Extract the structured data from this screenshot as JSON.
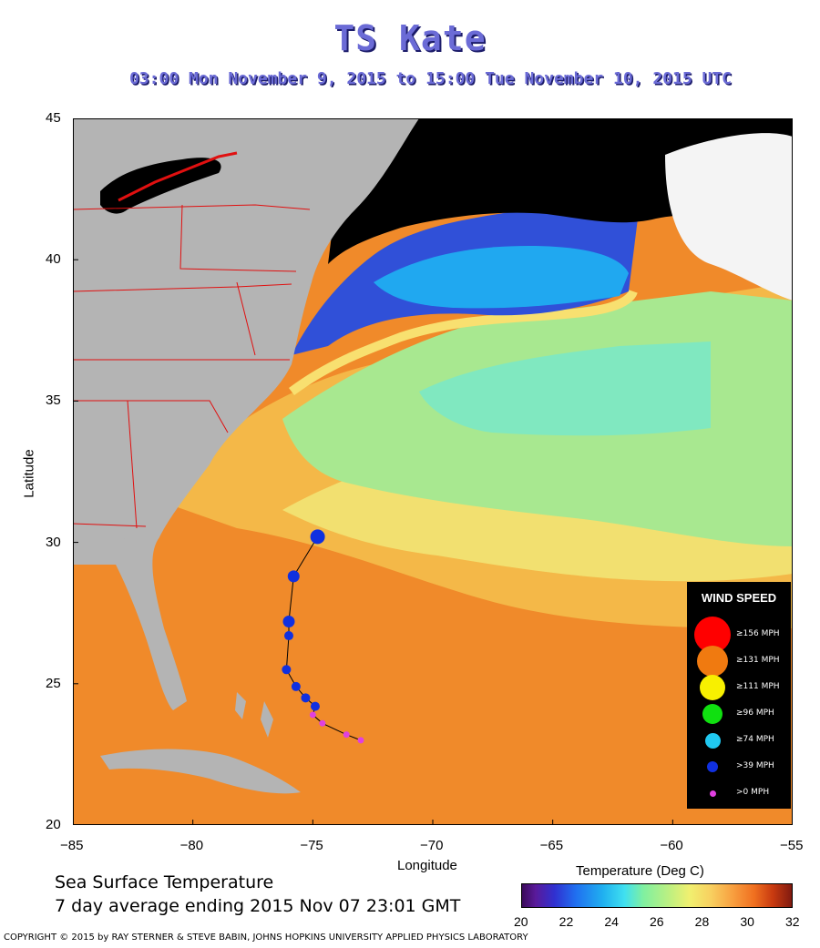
{
  "header": {
    "title": "TS Kate",
    "subtitle": "03:00 Mon November  9, 2015 to 15:00 Tue November 10, 2015  UTC"
  },
  "map": {
    "xlabel": "Longitude",
    "ylabel": "Latitude",
    "x_ticks": [
      "−85",
      "−80",
      "−75",
      "−70",
      "−65",
      "−60",
      "−55"
    ],
    "y_ticks": [
      "45",
      "40",
      "35",
      "30",
      "25",
      "20"
    ],
    "lon_range": [
      -85,
      -55
    ],
    "lat_range": [
      20,
      45
    ]
  },
  "track": {
    "points": [
      {
        "lon": -73.0,
        "lat": 23.0,
        "cat": "min"
      },
      {
        "lon": -73.6,
        "lat": 23.2,
        "cat": "min"
      },
      {
        "lon": -74.6,
        "lat": 23.6,
        "cat": "min"
      },
      {
        "lon": -75.0,
        "lat": 23.9,
        "cat": "min"
      },
      {
        "lon": -74.9,
        "lat": 24.2,
        "cat": "ts"
      },
      {
        "lon": -75.3,
        "lat": 24.5,
        "cat": "ts"
      },
      {
        "lon": -75.7,
        "lat": 24.9,
        "cat": "ts"
      },
      {
        "lon": -76.1,
        "lat": 25.5,
        "cat": "ts"
      },
      {
        "lon": -76.0,
        "lat": 26.7,
        "cat": "ts"
      },
      {
        "lon": -76.0,
        "lat": 27.2,
        "cat": "ts_big"
      },
      {
        "lon": -75.8,
        "lat": 28.8,
        "cat": "ts_big"
      },
      {
        "lon": -74.8,
        "lat": 30.2,
        "cat": "ts_large"
      }
    ]
  },
  "legend": {
    "title": "WIND SPEED",
    "items": [
      {
        "label": "≥156 MPH",
        "color": "#ff0000",
        "size": 40
      },
      {
        "label": "≥131 MPH",
        "color": "#f07a10",
        "size": 34
      },
      {
        "label": "≥111 MPH",
        "color": "#f8f000",
        "size": 28
      },
      {
        "label": "≥96 MPH",
        "color": "#10e010",
        "size": 22
      },
      {
        "label": "≥74 MPH",
        "color": "#20c8f0",
        "size": 17
      },
      {
        "label": ">39 MPH",
        "color": "#1030e0",
        "size": 12
      },
      {
        "label": ">0 MPH",
        "color": "#e040e0",
        "size": 7
      }
    ]
  },
  "colorbar": {
    "title": "Temperature (Deg C)",
    "ticks": [
      "20",
      "22",
      "24",
      "26",
      "28",
      "30",
      "32"
    ]
  },
  "footer": {
    "sst_title": "Sea Surface Temperature",
    "sst_range": "7 day average ending 2015 Nov 07 23:01 GMT",
    "copyright": "COPYRIGHT © 2015 by RAY STERNER & STEVE BABIN, JOHNS HOPKINS UNIVERSITY APPLIED PHYSICS LABORATORY"
  }
}
